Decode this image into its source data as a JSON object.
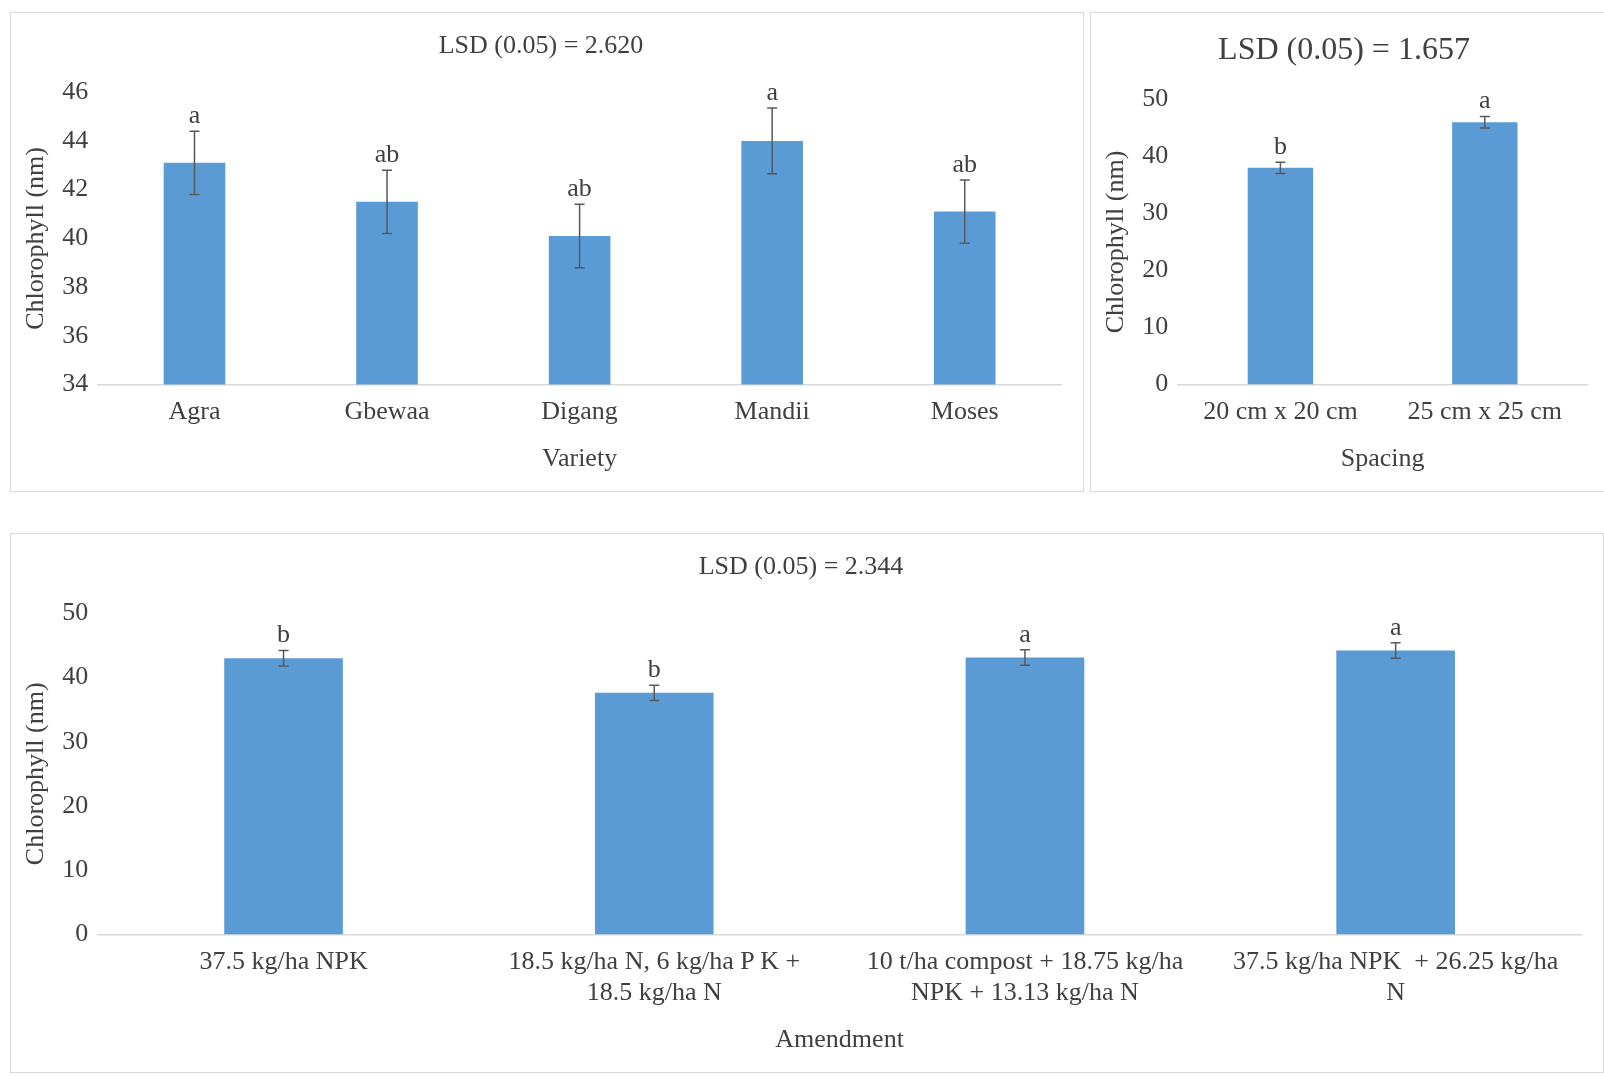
{
  "chart_data": [
    {
      "type": "bar",
      "title": "LSD (0.05) = 2.620",
      "xlabel": "Variety",
      "ylabel": "Chlorophyll (nm)",
      "categories": [
        "Agra",
        "Gbewaa",
        "Digang",
        "Mandii",
        "Moses"
      ],
      "values": [
        43.1,
        41.5,
        40.1,
        44.0,
        41.1
      ],
      "errors": [
        1.3,
        1.3,
        1.3,
        1.35,
        1.3
      ],
      "color": "#5b9bd5",
      "ylim": [
        34,
        46
      ],
      "yticks": [
        34,
        36,
        38,
        40,
        42,
        44,
        46
      ],
      "grid": false,
      "legend": false,
      "annotations": [
        {
          "text": "a",
          "x": "Agra",
          "y": 44.4
        },
        {
          "text": "ab",
          "x": "Gbewaa",
          "y": 42.8
        },
        {
          "text": "ab",
          "x": "Digang",
          "y": 41.4
        },
        {
          "text": "a",
          "x": "Mandii",
          "y": 45.35
        },
        {
          "text": "ab",
          "x": "Moses",
          "y": 42.4
        }
      ]
    },
    {
      "type": "bar",
      "title": "LSD (0.05) = 1.657",
      "xlabel": "Spacing",
      "ylabel": "Chlorophyll (nm)",
      "categories": [
        "20 cm x 20 cm",
        "25 cm x 25 cm"
      ],
      "values": [
        38,
        46
      ],
      "errors": [
        1,
        1
      ],
      "color": "#5b9bd5",
      "ylim": [
        0,
        50
      ],
      "yticks": [
        0,
        10,
        20,
        30,
        40,
        50
      ],
      "grid": false,
      "legend": false,
      "annotations": [
        {
          "text": "b",
          "x": "20 cm x 20 cm",
          "y": 39
        },
        {
          "text": "a",
          "x": "25 cm x 25 cm",
          "y": 47
        }
      ]
    },
    {
      "type": "bar",
      "title": "LSD (0.05) = 2.344",
      "xlabel": "Amendment",
      "ylabel": "Chlorophyll (nm)",
      "categories": [
        "37.5 kg/ha NPK",
        "18.5 kg/ha N, 6 kg/ha P K + 18.5 kg/ha N",
        "10 t/ha compost + 18.75 kg/ha NPK + 13.13 kg/ha N",
        "37.5 kg/ha NPK  + 26.25 kg/ha N"
      ],
      "values": [
        43,
        37.6,
        43.1,
        44.2
      ],
      "errors": [
        1.2,
        1.2,
        1.2,
        1.2
      ],
      "color": "#5b9bd5",
      "ylim": [
        0,
        50
      ],
      "yticks": [
        0,
        10,
        20,
        30,
        40,
        50
      ],
      "grid": false,
      "legend": false,
      "annotations": [
        {
          "text": "b",
          "x": "37.5 kg/ha NPK",
          "y": 44.2
        },
        {
          "text": "b",
          "x": "18.5 kg/ha N, 6 kg/ha P K + 18.5 kg/ha N",
          "y": 38.8
        },
        {
          "text": "a",
          "x": "10 t/ha compost + 18.75 kg/ha NPK + 13.13 kg/ha N",
          "y": 44.3
        },
        {
          "text": "a",
          "x": "37.5 kg/ha NPK  + 26.25 kg/ha N",
          "y": 45.4
        }
      ]
    }
  ]
}
